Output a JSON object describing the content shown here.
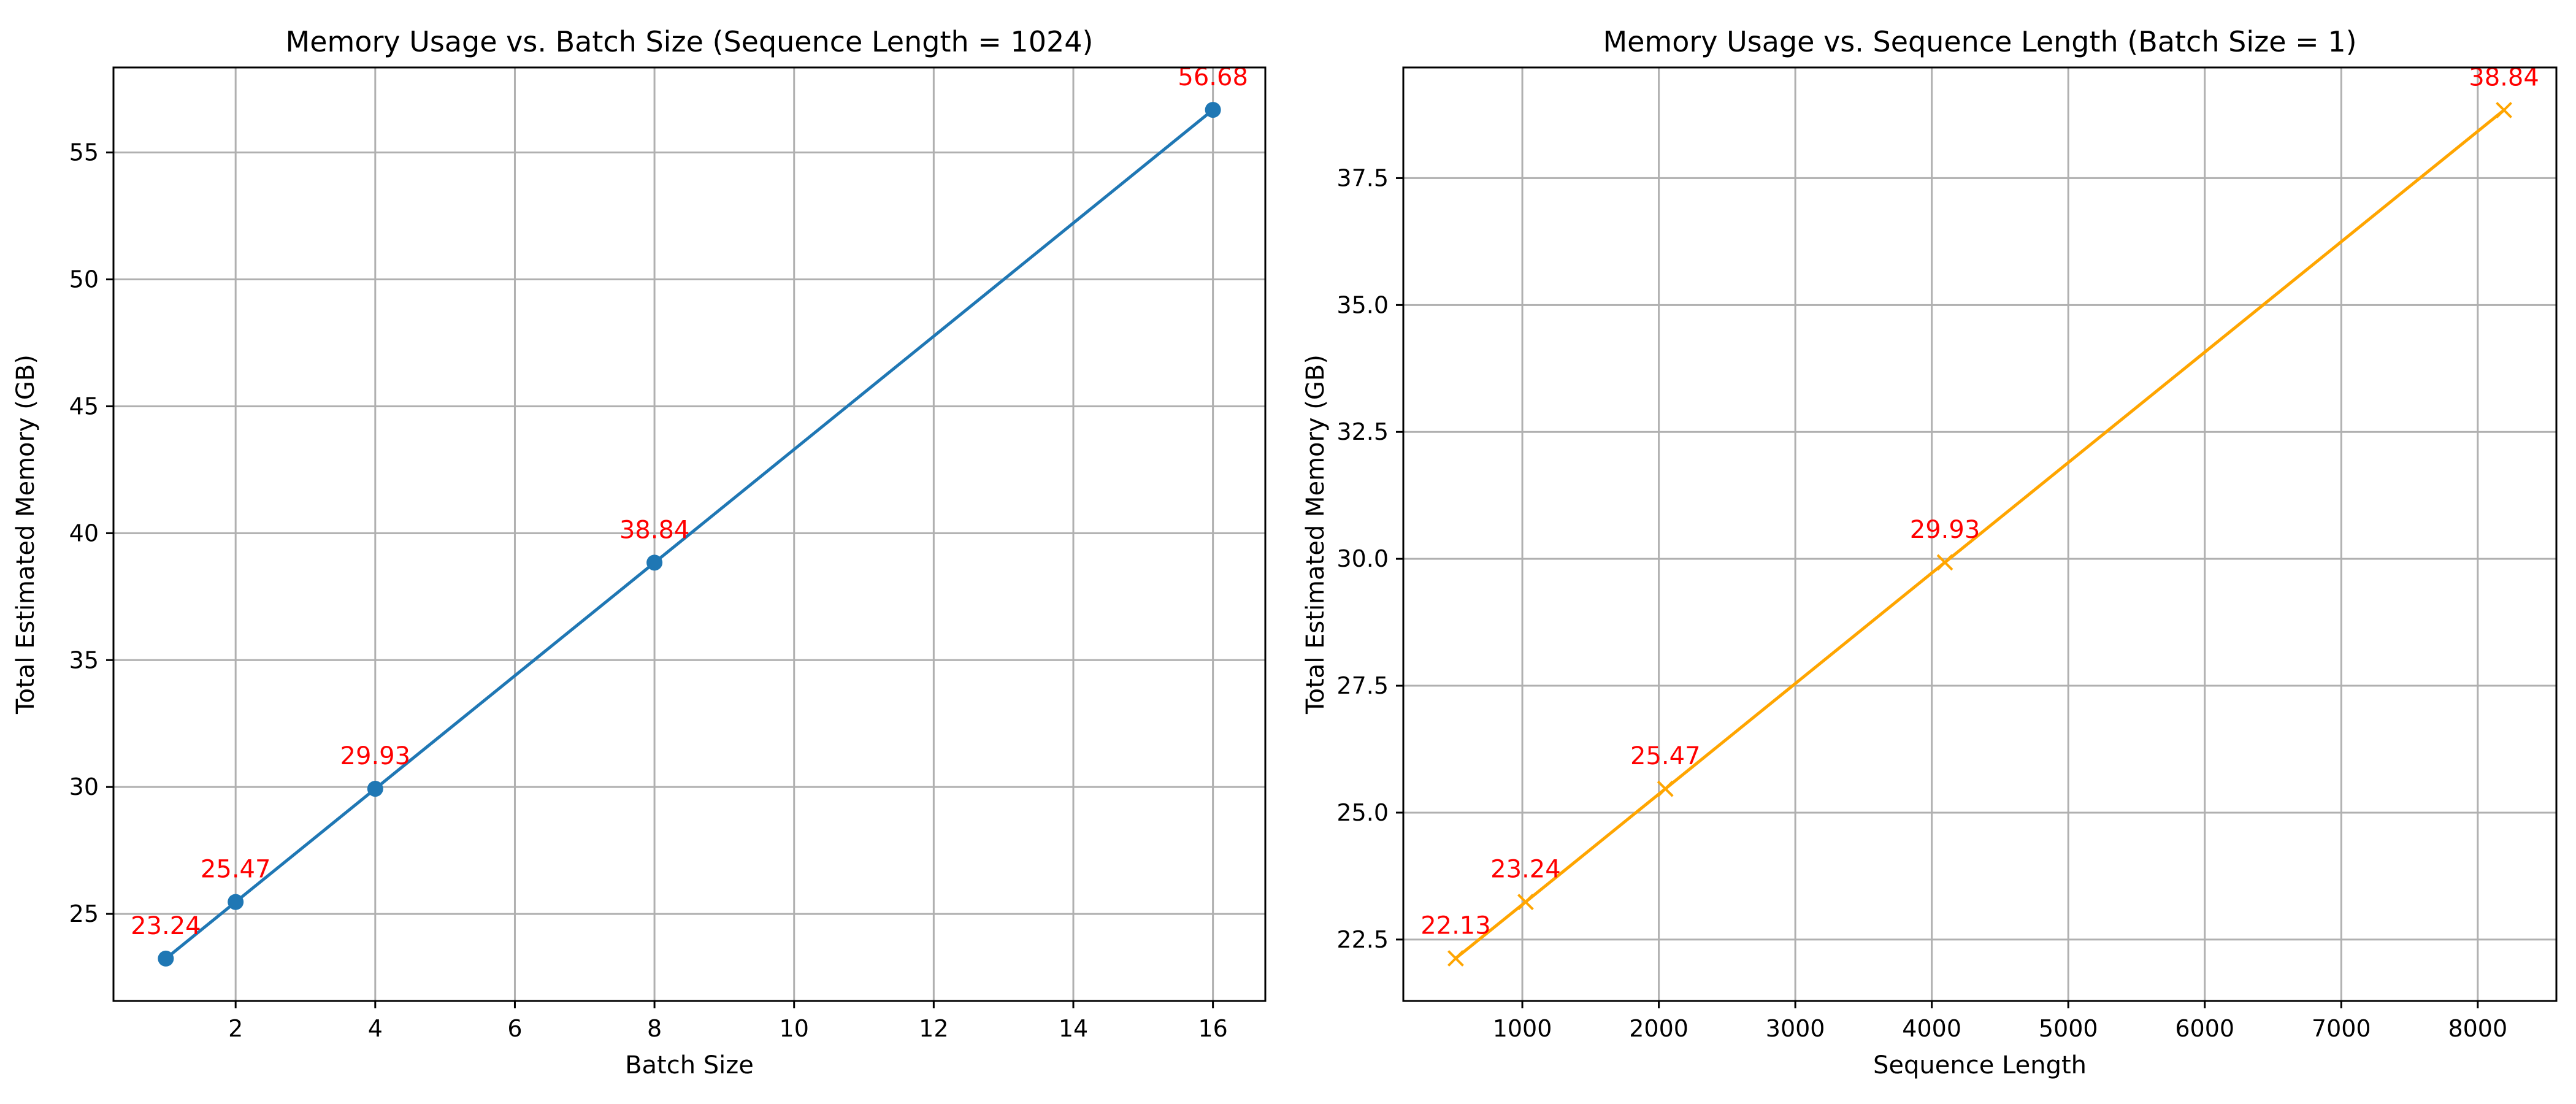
{
  "chart_data": [
    {
      "type": "line",
      "title": "Memory Usage vs. Batch Size (Sequence Length = 1024)",
      "xlabel": "Batch Size",
      "ylabel": "Total Estimated Memory (GB)",
      "xlim": [
        0.25,
        16.75
      ],
      "ylim": [
        21.57,
        58.35
      ],
      "xticks": [
        2,
        4,
        6,
        8,
        10,
        12,
        14,
        16
      ],
      "yticks": [
        25,
        30,
        35,
        40,
        45,
        50,
        55
      ],
      "grid": true,
      "series": [
        {
          "x": [
            1,
            2,
            4,
            8,
            16
          ],
          "y": [
            23.24,
            25.47,
            29.93,
            38.84,
            56.68
          ],
          "labels": [
            "23.24",
            "25.47",
            "29.93",
            "38.84",
            "56.68"
          ],
          "color": "#1f77b4",
          "marker": "circle"
        }
      ],
      "label_color": "#ff0000"
    },
    {
      "type": "line",
      "title": "Memory Usage vs. Sequence Length (Batch Size = 1)",
      "xlabel": "Sequence Length",
      "ylabel": "Total Estimated Memory (GB)",
      "xlim": [
        128,
        8576
      ],
      "ylim": [
        21.29,
        39.68
      ],
      "xticks": [
        1000,
        2000,
        3000,
        4000,
        5000,
        6000,
        7000,
        8000
      ],
      "yticks": [
        22.5,
        25.0,
        27.5,
        30.0,
        32.5,
        35.0,
        37.5
      ],
      "ytick_labels": [
        "22.5",
        "25.0",
        "27.5",
        "30.0",
        "32.5",
        "35.0",
        "37.5"
      ],
      "grid": true,
      "series": [
        {
          "x": [
            512,
            1024,
            2048,
            4096,
            8192
          ],
          "y": [
            22.13,
            23.24,
            25.47,
            29.93,
            38.84
          ],
          "labels": [
            "22.13",
            "23.24",
            "25.47",
            "29.93",
            "38.84"
          ],
          "color": "#ffa500",
          "marker": "x"
        }
      ],
      "label_color": "#ff0000"
    }
  ]
}
